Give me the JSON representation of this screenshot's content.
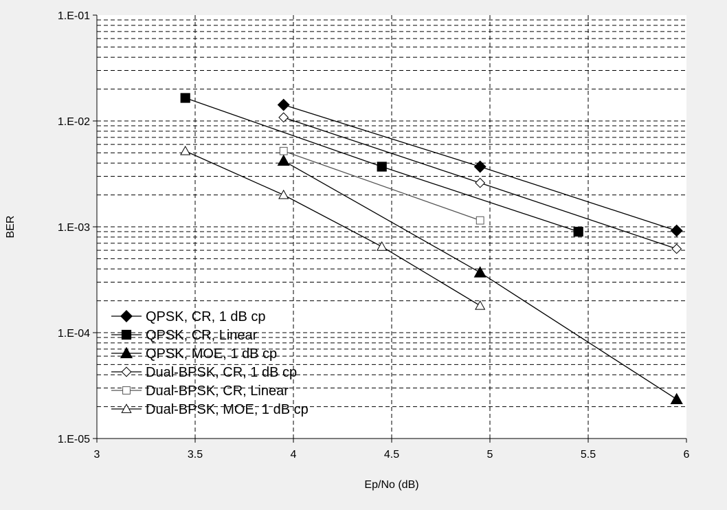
{
  "chart_data": {
    "type": "line",
    "xlabel": "Ep/No (dB)",
    "ylabel": "BER",
    "xlim": [
      3,
      6
    ],
    "ylim": [
      1e-05,
      0.1
    ],
    "y_scale": "log",
    "x_ticks": [
      "3",
      "3.5",
      "4",
      "4.5",
      "5",
      "5.5",
      "6"
    ],
    "y_ticks": [
      "1.E-05",
      "1.E-04",
      "1.E-03",
      "1.E-02",
      "1.E-01"
    ],
    "grid": true,
    "legend_position": "bottom-left",
    "background_color": "#ffffff",
    "page_color": "#f0f0f0",
    "series": [
      {
        "name": "QPSK, CR, 1 dB cp",
        "marker": "diamond",
        "filled": true,
        "line_color": "#000000",
        "x": [
          3.95,
          4.95,
          5.95
        ],
        "y": [
          0.0142,
          0.0037,
          0.00092
        ]
      },
      {
        "name": "QPSK, CR, Linear",
        "marker": "square",
        "filled": true,
        "line_color": "#000000",
        "x": [
          3.45,
          4.45,
          5.45
        ],
        "y": [
          0.0165,
          0.0037,
          0.0009
        ]
      },
      {
        "name": "QPSK, MOE, 1 dB cp",
        "marker": "triangle",
        "filled": true,
        "line_color": "#000000",
        "x": [
          3.95,
          4.95,
          5.95
        ],
        "y": [
          0.0042,
          0.00037,
          2.35e-05
        ]
      },
      {
        "name": "Dual-BPSK, CR, 1 dB cp",
        "marker": "diamond",
        "filled": false,
        "line_color": "#000000",
        "x": [
          3.95,
          4.95,
          5.95
        ],
        "y": [
          0.0108,
          0.0026,
          0.00062
        ]
      },
      {
        "name": "Dual-BPSK, CR, Linear",
        "marker": "square",
        "filled": false,
        "line_color": "#555555",
        "x": [
          3.95,
          4.95
        ],
        "y": [
          0.0052,
          0.00115
        ]
      },
      {
        "name": "Dual-BPSK, MOE, 1 dB cp",
        "marker": "triangle",
        "filled": false,
        "line_color": "#000000",
        "x": [
          3.45,
          3.95,
          4.45,
          4.95
        ],
        "y": [
          0.0052,
          0.002,
          0.00065,
          0.00018
        ]
      }
    ]
  }
}
